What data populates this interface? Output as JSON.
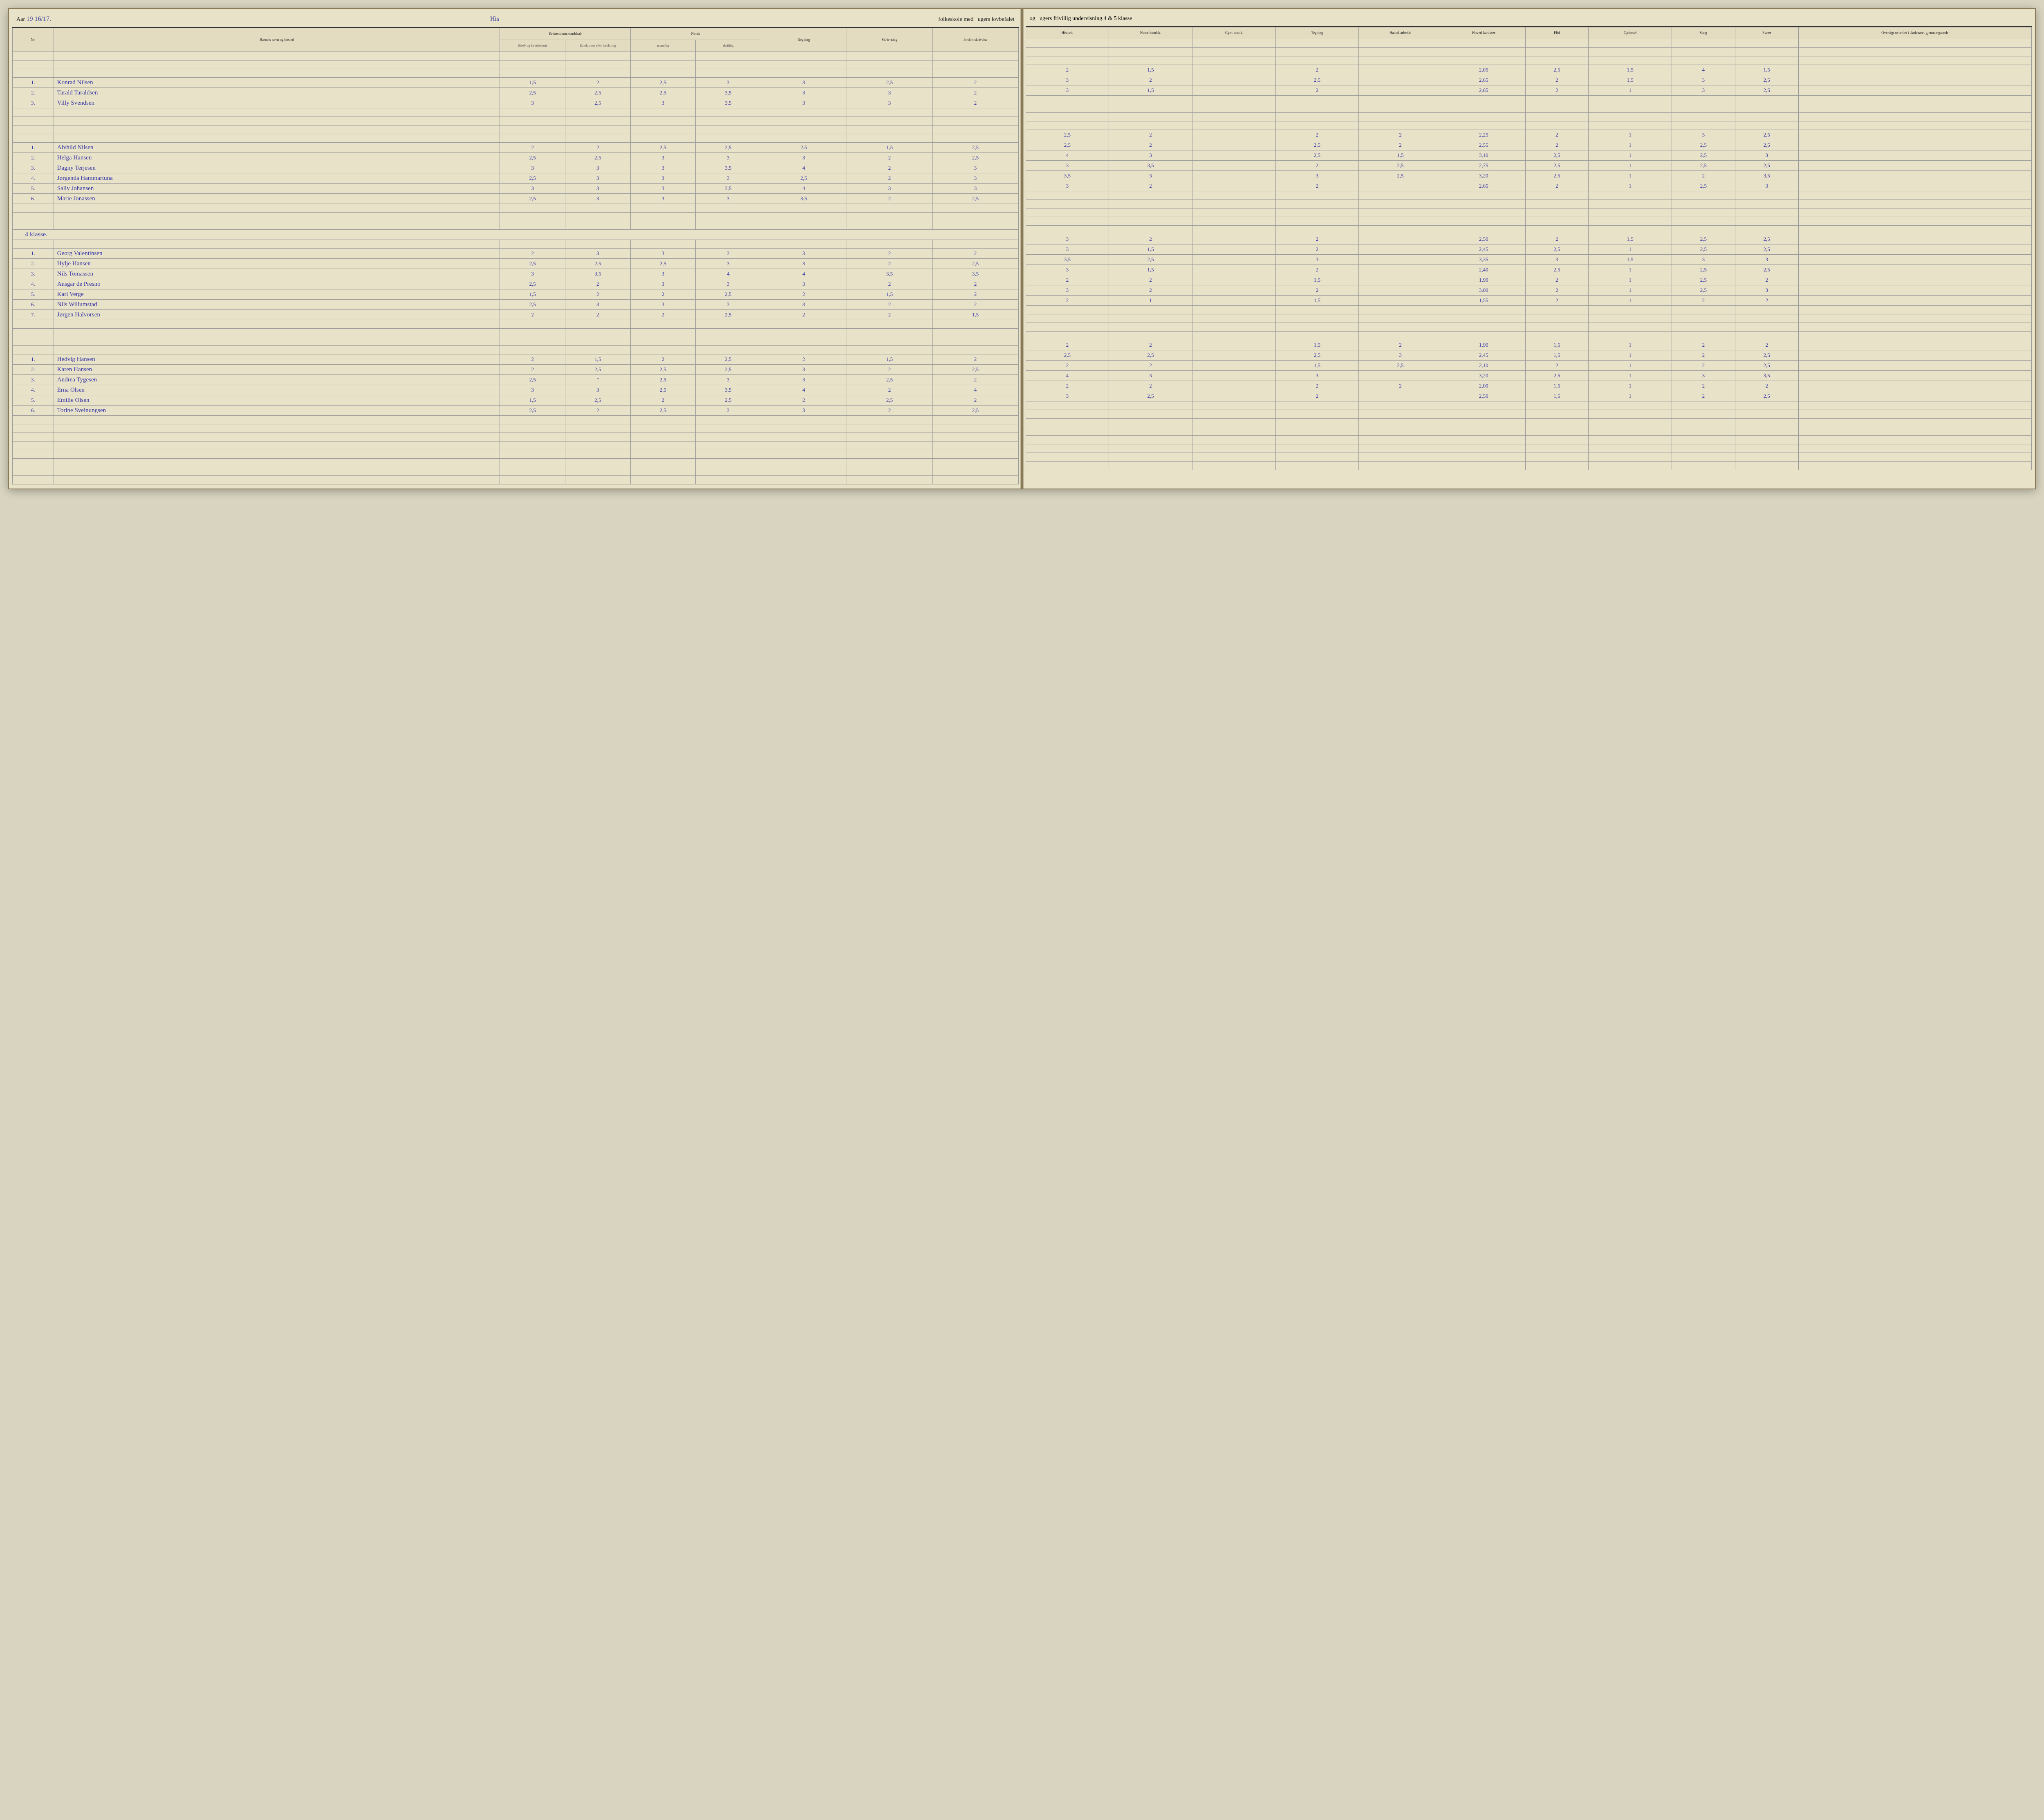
{
  "header": {
    "aar_label": "Aar",
    "aar_value": "19 16/17.",
    "school_name": "His",
    "left_line_1": "folkeskole med",
    "left_line_2": "ugers lovbefalet",
    "right_line_1": "og",
    "right_line_2": "ugers frivillig undervisning.",
    "klasse_value": "4 & 5",
    "klasse_label": "klasse"
  },
  "columns_left": {
    "nr": "Nr.",
    "name": "Barnets navn og bosted",
    "kristendom": "Kristendomskundskab",
    "kristendom_sub1": "Bibel- og kirkehistorie",
    "kristendom_sub2": "Katekismus eller forklaring",
    "norsk": "Norsk",
    "norsk_sub1": "mundtlig",
    "norsk_sub2": "skriftlig",
    "regning": "Regning",
    "skrivning": "Skriv-ning",
    "jord": "Jordbe-skrivelse"
  },
  "columns_right": {
    "historie": "Historie",
    "natur": "Natur-kundsk.",
    "gym": "Gym-nastik",
    "tegning": "Tegning",
    "haand": "Haand-arbeide",
    "hoved": "Hoved-karakter",
    "flid": "Flid",
    "opforsel": "Opførsel",
    "sang": "Sang",
    "evner": "Evner",
    "oversigt": "Oversigt over det i skoleaaret gjennemgaaede"
  },
  "colors": {
    "paper": "#e8e2c8",
    "ink_handwriting": "#3838a8",
    "ink_print": "#222222",
    "rule_line": "#9a9a9a",
    "header_border": "#333333"
  },
  "section_label": "4 klasse.",
  "groups": [
    {
      "students": [
        {
          "nr": "1",
          "name": "Konrad Nilsen",
          "l": [
            "1,5",
            "2",
            "2,5",
            "3",
            "3",
            "2,5",
            "2"
          ],
          "r": [
            "2",
            "1,5",
            "",
            "2",
            "",
            "2,05",
            "2,5",
            "1,5",
            "4",
            "1,5",
            ""
          ]
        },
        {
          "nr": "2",
          "name": "Tarald Taraldsen",
          "l": [
            "2,5",
            "2,5",
            "2,5",
            "3,5",
            "3",
            "3",
            "2"
          ],
          "r": [
            "3",
            "2",
            "",
            "2,5",
            "",
            "2,65",
            "2",
            "1,5",
            "3",
            "2,5",
            ""
          ]
        },
        {
          "nr": "3",
          "name": "Villy Svendsen",
          "l": [
            "3",
            "2,5",
            "3",
            "3,5",
            "3",
            "3",
            "2"
          ],
          "r": [
            "3",
            "1,5",
            "",
            "2",
            "",
            "2,65",
            "2",
            "1",
            "3",
            "2,5",
            ""
          ]
        }
      ]
    },
    {
      "students": [
        {
          "nr": "1",
          "name": "Alvhild Nilsen",
          "l": [
            "2",
            "2",
            "2,5",
            "2,5",
            "2,5",
            "1,5",
            "2,5"
          ],
          "r": [
            "2,5",
            "2",
            "",
            "2",
            "2",
            "2,25",
            "2",
            "1",
            "3",
            "2,5",
            ""
          ]
        },
        {
          "nr": "2",
          "name": "Helga Hansen",
          "l": [
            "2,5",
            "2,5",
            "3",
            "3",
            "3",
            "2",
            "2,5"
          ],
          "r": [
            "2,5",
            "2",
            "",
            "2,5",
            "2",
            "2,55",
            "2",
            "1",
            "2,5",
            "2,5",
            ""
          ]
        },
        {
          "nr": "3",
          "name": "Dagny Terjesen",
          "l": [
            "3",
            "3",
            "3",
            "3,5",
            "4",
            "2",
            "3"
          ],
          "r": [
            "4",
            "3",
            "",
            "2,5",
            "1,5",
            "3,10",
            "2,5",
            "1",
            "2,5",
            "3",
            ""
          ]
        },
        {
          "nr": "4",
          "name": "Jørgenda Hammartuna",
          "l": [
            "2,5",
            "3",
            "3",
            "3",
            "2,5",
            "2",
            "3"
          ],
          "r": [
            "3",
            "3,5",
            "",
            "2",
            "2,5",
            "2,75",
            "2,5",
            "1",
            "2,5",
            "2,5",
            ""
          ]
        },
        {
          "nr": "5",
          "name": "Sally Johansen",
          "l": [
            "3",
            "3",
            "3",
            "3,5",
            "4",
            "3",
            "3"
          ],
          "r": [
            "3,5",
            "3",
            "",
            "3",
            "2,5",
            "3,20",
            "2,5",
            "1",
            "2",
            "3,5",
            ""
          ]
        },
        {
          "nr": "6",
          "name": "Marie Jonassen",
          "l": [
            "2,5",
            "3",
            "3",
            "3",
            "3,5",
            "2",
            "2,5"
          ],
          "r": [
            "3",
            "2",
            "",
            "2",
            "",
            "2,65",
            "2",
            "1",
            "2,5",
            "3",
            ""
          ]
        }
      ]
    },
    {
      "section": true,
      "students": [
        {
          "nr": "1",
          "name": "Georg Valentinsen",
          "l": [
            "2",
            "3",
            "3",
            "3",
            "3",
            "2",
            "2"
          ],
          "r": [
            "3",
            "2",
            "",
            "2",
            "",
            "2,50",
            "2",
            "1,5",
            "2,5",
            "2,5",
            ""
          ]
        },
        {
          "nr": "2",
          "name": "Hylje Hansen",
          "l": [
            "2,5",
            "2,5",
            "2,5",
            "3",
            "3",
            "2",
            "2,5"
          ],
          "r": [
            "3",
            "1,5",
            "",
            "2",
            "",
            "2,45",
            "2,5",
            "1",
            "2,5",
            "2,5",
            ""
          ]
        },
        {
          "nr": "3",
          "name": "Nils Tomassen",
          "l": [
            "3",
            "3,5",
            "3",
            "4",
            "4",
            "3,5",
            "3,5"
          ],
          "r": [
            "3,5",
            "2,5",
            "",
            "3",
            "",
            "3,35",
            "3",
            "1,5",
            "3",
            "3",
            ""
          ]
        },
        {
          "nr": "4",
          "name": "Ansgar de Presno",
          "l": [
            "2,5",
            "2",
            "3",
            "3",
            "3",
            "2",
            "2"
          ],
          "r": [
            "3",
            "1,5",
            "",
            "2",
            "",
            "2,40",
            "2,5",
            "1",
            "2,5",
            "2,5",
            ""
          ]
        },
        {
          "nr": "5",
          "name": "Karl Verge",
          "l": [
            "1,5",
            "2",
            "2",
            "2,5",
            "2",
            "1,5",
            "2"
          ],
          "r": [
            "2",
            "2",
            "",
            "1,5",
            "",
            "1,90",
            "2",
            "1",
            "2,5",
            "2",
            ""
          ]
        },
        {
          "nr": "6",
          "name": "Nils Willumstad",
          "l": [
            "2,5",
            "3",
            "3",
            "3",
            "3",
            "2",
            "2"
          ],
          "r": [
            "3",
            "2",
            "",
            "2",
            "",
            "3,00",
            "2",
            "1",
            "2,5",
            "3",
            ""
          ]
        },
        {
          "nr": "7",
          "name": "Jørgen Halvorsen",
          "l": [
            "2",
            "2",
            "2",
            "2,5",
            "2",
            "2",
            "1,5"
          ],
          "r": [
            "2",
            "1",
            "",
            "1,5",
            "",
            "1,55",
            "2",
            "1",
            "2",
            "2",
            ""
          ]
        }
      ]
    },
    {
      "students": [
        {
          "nr": "1",
          "name": "Hedvig Hansen",
          "l": [
            "2",
            "1,5",
            "2",
            "2,5",
            "2",
            "1,5",
            "2"
          ],
          "r": [
            "2",
            "2",
            "",
            "1,5",
            "2",
            "1,90",
            "1,5",
            "1",
            "2",
            "2",
            ""
          ]
        },
        {
          "nr": "2",
          "name": "Karen Hansen",
          "l": [
            "2",
            "2,5",
            "2,5",
            "2,5",
            "3",
            "2",
            "2,5"
          ],
          "r": [
            "2,5",
            "2,5",
            "",
            "2,5",
            "3",
            "2,45",
            "1,5",
            "1",
            "2",
            "2,5",
            ""
          ]
        },
        {
          "nr": "3",
          "name": "Andrea Tygesen",
          "l": [
            "2,5",
            "\"",
            "2,5",
            "3",
            "3",
            "2,5",
            "2"
          ],
          "r": [
            "2",
            "2",
            "",
            "1,5",
            "2,5",
            "2,10",
            "2",
            "1",
            "2",
            "2,5",
            ""
          ]
        },
        {
          "nr": "4",
          "name": "Erna Olsen",
          "l": [
            "3",
            "3",
            "2,5",
            "3,5",
            "4",
            "2",
            "4"
          ],
          "r": [
            "4",
            "3",
            "",
            "3",
            "",
            "3,20",
            "2,5",
            "1",
            "3",
            "3,5",
            ""
          ]
        },
        {
          "nr": "5",
          "name": "Emilie Olsen",
          "l": [
            "1,5",
            "2,5",
            "2",
            "2,5",
            "2",
            "2,5",
            "2"
          ],
          "r": [
            "2",
            "2",
            "",
            "2",
            "2",
            "2,00",
            "1,5",
            "1",
            "2",
            "2",
            ""
          ]
        },
        {
          "nr": "6",
          "name": "Torine Sveinungsen",
          "l": [
            "2,5",
            "2",
            "2,5",
            "3",
            "3",
            "2",
            "2,5"
          ],
          "r": [
            "3",
            "2,5",
            "",
            "2",
            "",
            "2,50",
            "1,5",
            "1",
            "2",
            "2,5",
            ""
          ]
        }
      ]
    }
  ]
}
